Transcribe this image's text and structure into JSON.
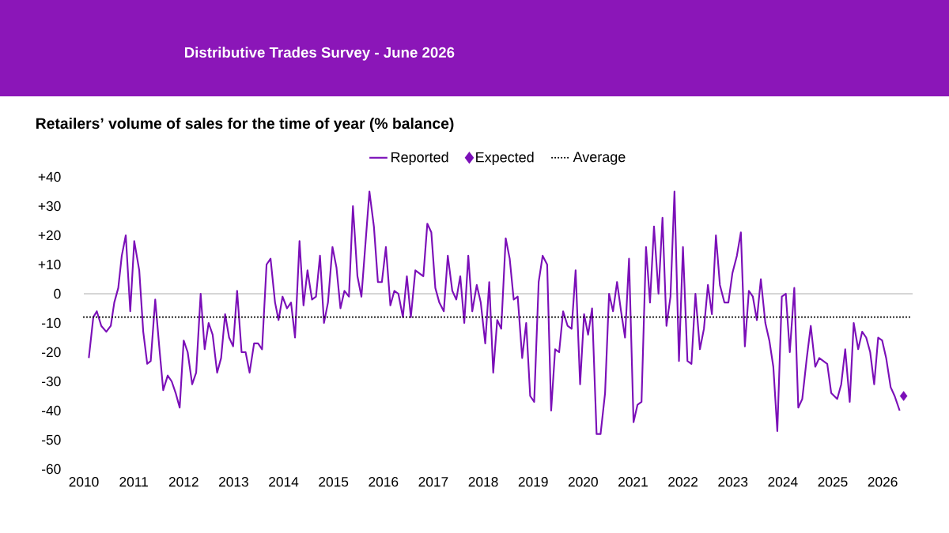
{
  "chart_data": {
    "type": "line",
    "title": "Distributive Trades Survey - June 2026",
    "subtitle": "Retailers’ volume of sales for the time of year (% balance)",
    "xlim": [
      2010,
      2026.6
    ],
    "xticks": [
      2010,
      2011,
      2012,
      2013,
      2014,
      2015,
      2016,
      2017,
      2018,
      2019,
      2020,
      2021,
      2022,
      2023,
      2024,
      2025,
      2026
    ],
    "ylim": [
      -60,
      40
    ],
    "yticks": [
      {
        "value": 40,
        "label": "+40"
      },
      {
        "value": 30,
        "label": "+30"
      },
      {
        "value": 20,
        "label": "+20"
      },
      {
        "value": 10,
        "label": "+10"
      },
      0,
      -10,
      -20,
      -30,
      -40,
      -50,
      -60
    ],
    "legend": "top",
    "series": [
      {
        "name": "Reported",
        "color": "#7b0fb8",
        "marker": "none",
        "line_style": "solid",
        "x": [
          2010.1,
          2010.19,
          2010.26,
          2010.35,
          2010.45,
          2010.54,
          2010.61,
          2010.69,
          2010.76,
          2010.84,
          2010.93,
          2011.01,
          2011.11,
          2011.19,
          2011.27,
          2011.34,
          2011.43,
          2011.51,
          2011.59,
          2011.68,
          2011.76,
          2011.84,
          2011.92,
          2012.0,
          2012.08,
          2012.17,
          2012.25,
          2012.34,
          2012.42,
          2012.5,
          2012.58,
          2012.67,
          2012.75,
          2012.83,
          2012.91,
          2012.99,
          2013.07,
          2013.16,
          2013.24,
          2013.32,
          2013.41,
          2013.49,
          2013.57,
          2013.66,
          2013.74,
          2013.83,
          2013.9,
          2013.98,
          2014.07,
          2014.15,
          2014.23,
          2014.32,
          2014.4,
          2014.48,
          2014.57,
          2014.65,
          2014.73,
          2014.81,
          2014.89,
          2014.98,
          2015.06,
          2015.14,
          2015.22,
          2015.31,
          2015.39,
          2015.48,
          2015.56,
          2015.64,
          2015.72,
          2015.81,
          2015.89,
          2015.97,
          2016.05,
          2016.14,
          2016.22,
          2016.3,
          2016.39,
          2016.47,
          2016.55,
          2016.64,
          2016.72,
          2016.8,
          2016.88,
          2016.96,
          2017.04,
          2017.12,
          2017.21,
          2017.29,
          2017.38,
          2017.46,
          2017.54,
          2017.62,
          2017.7,
          2017.78,
          2017.87,
          2017.95,
          2018.04,
          2018.12,
          2018.2,
          2018.28,
          2018.36,
          2018.45,
          2018.53,
          2018.61,
          2018.69,
          2018.78,
          2018.86,
          2018.94,
          2019.02,
          2019.11,
          2019.19,
          2019.28,
          2019.36,
          2019.44,
          2019.52,
          2019.6,
          2019.69,
          2019.77,
          2019.85,
          2019.94,
          2020.02,
          2020.1,
          2020.18,
          2020.27,
          2020.35,
          2020.44,
          2020.52,
          2020.6,
          2020.68,
          2020.76,
          2020.84,
          2020.92,
          2021.01,
          2021.09,
          2021.17,
          2021.26,
          2021.34,
          2021.42,
          2021.51,
          2021.59,
          2021.67,
          2021.75,
          2021.83,
          2021.92,
          2022.0,
          2022.09,
          2022.17,
          2022.25,
          2022.34,
          2022.42,
          2022.5,
          2022.58,
          2022.66,
          2022.74,
          2022.83,
          2022.91,
          2022.99,
          2023.08,
          2023.16,
          2023.24,
          2023.32,
          2023.4,
          2023.48,
          2023.56,
          2023.65,
          2023.73,
          2023.81,
          2023.89,
          2023.98,
          2024.06,
          2024.14,
          2024.23,
          2024.31,
          2024.39,
          2024.48,
          2024.56,
          2024.65,
          2024.73,
          2024.81,
          2024.89,
          2024.97,
          2025.09,
          2025.17,
          2025.25,
          2025.34,
          2025.42,
          2025.51,
          2025.59,
          2025.67,
          2025.75,
          2025.83,
          2025.91,
          2025.99,
          2026.07,
          2026.16,
          2026.24,
          2026.34
        ],
        "values": [
          -22,
          -8,
          -6,
          -11,
          -13,
          -11,
          -3,
          2,
          13,
          20,
          -6,
          18,
          8,
          -13,
          -24,
          -23,
          -2,
          -18,
          -33,
          -28,
          -30,
          -34,
          -39,
          -16,
          -20,
          -31,
          -27,
          0,
          -19,
          -10,
          -14,
          -27,
          -22,
          -7,
          -15,
          -18,
          1,
          -20,
          -20,
          -27,
          -17,
          -17,
          -19,
          10,
          12,
          -3,
          -9,
          -1,
          -5,
          -3,
          -15,
          18,
          -4,
          8,
          -2,
          -1,
          13,
          -10,
          -3,
          16,
          9,
          -5,
          1,
          -1,
          30,
          6,
          -1,
          17,
          35,
          23,
          4,
          4,
          16,
          -4,
          1,
          0,
          -8,
          6,
          -8,
          8,
          7,
          6,
          24,
          21,
          2,
          -3,
          -6,
          13,
          1,
          -2,
          6,
          -10,
          13,
          -6,
          3,
          -3,
          -17,
          4,
          -27,
          -9,
          -12,
          19,
          12,
          -2,
          -1,
          -22,
          -10,
          -35,
          -37,
          4,
          13,
          10,
          -40,
          -19,
          -20,
          -6,
          -11,
          -12,
          8,
          -31,
          -7,
          -14,
          -5,
          -48,
          -48,
          -34,
          0,
          -6,
          4,
          -6,
          -15,
          12,
          -44,
          -38,
          -37,
          16,
          -3,
          23,
          0,
          26,
          -11,
          -1,
          35,
          -23,
          16,
          -23,
          -24,
          0,
          -19,
          -12,
          3,
          -7,
          20,
          3,
          -3,
          -3,
          7,
          13,
          21,
          -18,
          1,
          -1,
          -9,
          5,
          -10,
          -16,
          -25,
          -47,
          -1,
          0,
          -20,
          2,
          -39,
          -36,
          -22,
          -11,
          -25,
          -22,
          -23,
          -24,
          -34,
          -36,
          -31,
          -19,
          -37,
          -10,
          -19,
          -13,
          -15,
          -20,
          -31,
          -15,
          -16,
          -22,
          -32,
          -35,
          -40
        ]
      },
      {
        "name": "Expected",
        "type": "scatter",
        "color": "#7b0fb8",
        "marker": "diamond",
        "x": [
          2026.42
        ],
        "values": [
          -35
        ]
      }
    ],
    "ref_lines": [
      {
        "axis": "y",
        "value": 0,
        "color": "#c8c8c8",
        "line_style": "solid"
      },
      {
        "axis": "y",
        "value": -8,
        "label": "Average",
        "color": "#000000",
        "line_style": "dotted"
      }
    ]
  }
}
